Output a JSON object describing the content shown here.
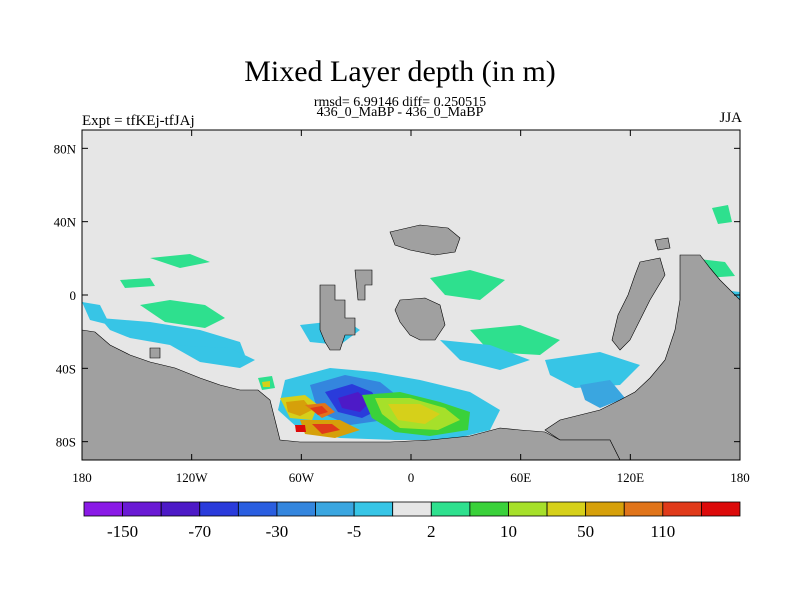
{
  "title": "Mixed Layer depth (in m)",
  "stats": "rmsd= 6.99146 diff= 0.250515",
  "experiments": "436_0_MaBP - 436_0_MaBP",
  "left_label": "Expt = tfKEj-tfJAj",
  "right_label": "JJA",
  "map": {
    "projection": "cylindrical equidistant",
    "lon_range": [
      -180,
      180
    ],
    "lat_range": [
      -90,
      90
    ],
    "lon_ticks": [
      {
        "value": -180,
        "label": "180"
      },
      {
        "value": -120,
        "label": "120W"
      },
      {
        "value": -60,
        "label": "60W"
      },
      {
        "value": 0,
        "label": "0"
      },
      {
        "value": 60,
        "label": "60E"
      },
      {
        "value": 120,
        "label": "120E"
      },
      {
        "value": 180,
        "label": "180"
      }
    ],
    "lat_ticks": [
      {
        "value": 80,
        "label": "80N"
      },
      {
        "value": 40,
        "label": "40N"
      },
      {
        "value": 0,
        "label": "0"
      },
      {
        "value": -40,
        "label": "40S"
      },
      {
        "value": -80,
        "label": "80S"
      }
    ],
    "land_color": "#a0a0a0",
    "background_color": "#e6e6e6"
  },
  "colorbar": {
    "colors": [
      "#8a1ae6",
      "#6a1ad4",
      "#4d1ac7",
      "#2a3bdb",
      "#2a5ee0",
      "#3486de",
      "#3aa6e0",
      "#37c5e6",
      "#e6e6e6",
      "#2ee08e",
      "#3ad13a",
      "#a6e02a",
      "#d6d01a",
      "#d6a00a",
      "#e0741a",
      "#e03a1a",
      "#dc0a0a"
    ],
    "tick_labels": [
      "-150",
      "-70",
      "-30",
      "-5",
      "2",
      "10",
      "50",
      "110"
    ]
  }
}
